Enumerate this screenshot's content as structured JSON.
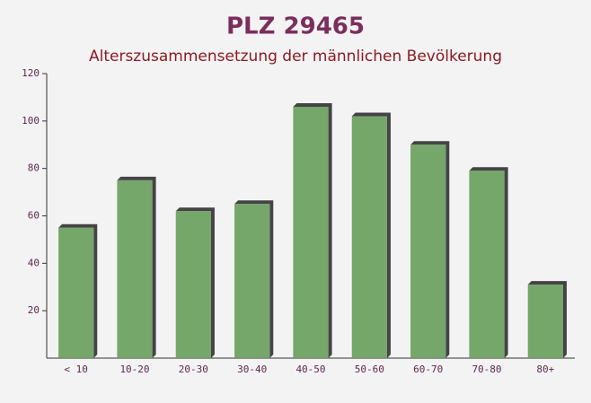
{
  "chart_data": {
    "type": "bar",
    "title": "PLZ 29465",
    "subtitle": "Alterszusammensetzung der männlichen Bevölkerung",
    "categories": [
      "< 10",
      "10-20",
      "20-30",
      "30-40",
      "40-50",
      "50-60",
      "60-70",
      "70-80",
      "80+"
    ],
    "values": [
      55,
      75,
      62,
      65,
      106,
      102,
      90,
      79,
      31
    ],
    "color": "#6a9f5e",
    "ylim": [
      0,
      120
    ],
    "yticks": [
      20,
      40,
      60,
      80,
      100,
      120
    ]
  }
}
